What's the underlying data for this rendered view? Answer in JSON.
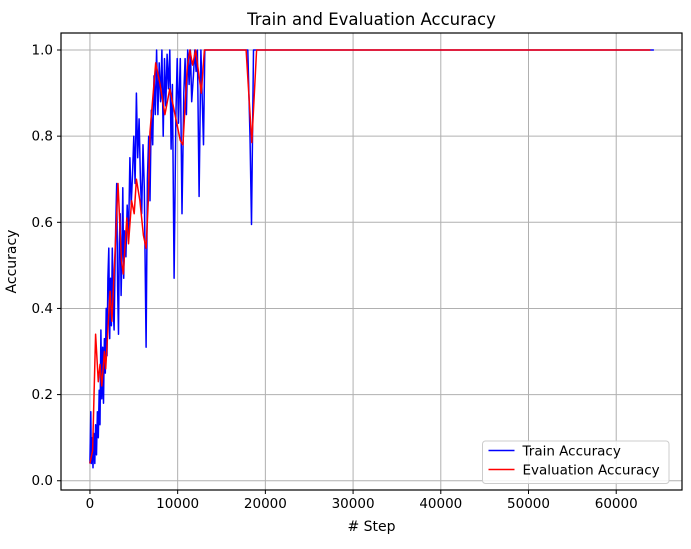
{
  "figure": {
    "background": "#ffffff"
  },
  "chart_data": {
    "type": "line",
    "title": "Train and Evaluation Accuracy",
    "xlabel": "# Step",
    "ylabel": "Accuracy",
    "xlim": [
      -3300,
      67500
    ],
    "ylim": [
      -0.0215,
      1.0395
    ],
    "xticks": [
      0,
      10000,
      20000,
      30000,
      40000,
      50000,
      60000
    ],
    "xtick_labels": [
      "0",
      "10000",
      "20000",
      "30000",
      "40000",
      "50000",
      "60000"
    ],
    "yticks": [
      0.0,
      0.2,
      0.4,
      0.6,
      0.8,
      1.0
    ],
    "ytick_labels": [
      "0.0",
      "0.2",
      "0.4",
      "0.6",
      "0.8",
      "1.0"
    ],
    "grid": true,
    "grid_color": "#b0b0b0",
    "spine_color": "#000000",
    "legend": {
      "position": "lower right",
      "background": "#ffffff",
      "border_color": "#cccccc"
    },
    "series": [
      {
        "name": "Train Accuracy",
        "color": "#0000ff",
        "points": [
          [
            0,
            0.04
          ],
          [
            100,
            0.16
          ],
          [
            150,
            0.04
          ],
          [
            250,
            0.1
          ],
          [
            350,
            0.03
          ],
          [
            450,
            0.11
          ],
          [
            550,
            0.04
          ],
          [
            650,
            0.13
          ],
          [
            750,
            0.06
          ],
          [
            850,
            0.16
          ],
          [
            950,
            0.1
          ],
          [
            1050,
            0.21
          ],
          [
            1150,
            0.13
          ],
          [
            1250,
            0.35
          ],
          [
            1350,
            0.19
          ],
          [
            1450,
            0.31
          ],
          [
            1550,
            0.18
          ],
          [
            1650,
            0.33
          ],
          [
            1750,
            0.25
          ],
          [
            1850,
            0.4
          ],
          [
            1950,
            0.29
          ],
          [
            2050,
            0.47
          ],
          [
            2150,
            0.54
          ],
          [
            2250,
            0.33
          ],
          [
            2350,
            0.47
          ],
          [
            2450,
            0.36
          ],
          [
            2550,
            0.54
          ],
          [
            2650,
            0.4
          ],
          [
            2750,
            0.35
          ],
          [
            2850,
            0.48
          ],
          [
            2950,
            0.6
          ],
          [
            3050,
            0.69
          ],
          [
            3150,
            0.45
          ],
          [
            3250,
            0.34
          ],
          [
            3350,
            0.55
          ],
          [
            3450,
            0.62
          ],
          [
            3550,
            0.43
          ],
          [
            3650,
            0.53
          ],
          [
            3750,
            0.68
          ],
          [
            3850,
            0.47
          ],
          [
            3950,
            0.58
          ],
          [
            4100,
            0.52
          ],
          [
            4250,
            0.64
          ],
          [
            4400,
            0.56
          ],
          [
            4550,
            0.75
          ],
          [
            4700,
            0.64
          ],
          [
            4850,
            0.71
          ],
          [
            5000,
            0.8
          ],
          [
            5150,
            0.69
          ],
          [
            5300,
            0.9
          ],
          [
            5450,
            0.75
          ],
          [
            5600,
            0.84
          ],
          [
            5750,
            0.7
          ],
          [
            5900,
            0.62
          ],
          [
            6050,
            0.78
          ],
          [
            6200,
            0.68
          ],
          [
            6400,
            0.31
          ],
          [
            6550,
            0.7
          ],
          [
            6700,
            0.8
          ],
          [
            6850,
            0.65
          ],
          [
            7000,
            0.86
          ],
          [
            7150,
            0.78
          ],
          [
            7300,
            0.94
          ],
          [
            7450,
            0.85
          ],
          [
            7600,
            1.0
          ],
          [
            7750,
            0.85
          ],
          [
            7900,
            0.97
          ],
          [
            8050,
            0.88
          ],
          [
            8200,
            1.0
          ],
          [
            8350,
            0.8
          ],
          [
            8500,
            0.98
          ],
          [
            8650,
            0.87
          ],
          [
            8800,
            0.99
          ],
          [
            8950,
            0.91
          ],
          [
            9100,
            1.0
          ],
          [
            9250,
            0.77
          ],
          [
            9400,
            0.92
          ],
          [
            9600,
            0.47
          ],
          [
            9800,
            0.85
          ],
          [
            9950,
            0.98
          ],
          [
            10100,
            0.83
          ],
          [
            10300,
            0.98
          ],
          [
            10500,
            0.62
          ],
          [
            10700,
            0.9
          ],
          [
            10850,
            0.98
          ],
          [
            11000,
            0.85
          ],
          [
            11150,
            1.0
          ],
          [
            11300,
            0.92
          ],
          [
            11450,
            1.0
          ],
          [
            11600,
            0.88
          ],
          [
            11800,
            0.94
          ],
          [
            11950,
            1.0
          ],
          [
            12100,
            0.95
          ],
          [
            12250,
            1.0
          ],
          [
            12450,
            0.66
          ],
          [
            12650,
            1.0
          ],
          [
            12950,
            0.78
          ],
          [
            13100,
            1.0
          ],
          [
            14000,
            1.0
          ],
          [
            16000,
            1.0
          ],
          [
            18000,
            1.0
          ],
          [
            18250,
            0.8
          ],
          [
            18420,
            0.595
          ],
          [
            18650,
            1.0
          ],
          [
            20000,
            1.0
          ],
          [
            30000,
            1.0
          ],
          [
            40000,
            1.0
          ],
          [
            50000,
            1.0
          ],
          [
            60000,
            1.0
          ],
          [
            64300,
            1.0
          ]
        ]
      },
      {
        "name": "Evaluation Accuracy",
        "color": "#ff0000",
        "points": [
          [
            0,
            0.04
          ],
          [
            300,
            0.07
          ],
          [
            650,
            0.34
          ],
          [
            950,
            0.23
          ],
          [
            1150,
            0.27
          ],
          [
            1350,
            0.22
          ],
          [
            1650,
            0.3
          ],
          [
            1800,
            0.26
          ],
          [
            2300,
            0.44
          ],
          [
            2500,
            0.37
          ],
          [
            2900,
            0.55
          ],
          [
            3200,
            0.69
          ],
          [
            3600,
            0.51
          ],
          [
            3800,
            0.48
          ],
          [
            4200,
            0.61
          ],
          [
            4400,
            0.55
          ],
          [
            4750,
            0.65
          ],
          [
            5050,
            0.62
          ],
          [
            5300,
            0.7
          ],
          [
            5700,
            0.65
          ],
          [
            6100,
            0.57
          ],
          [
            6400,
            0.54
          ],
          [
            6650,
            0.65
          ],
          [
            6850,
            0.81
          ],
          [
            7500,
            0.97
          ],
          [
            8000,
            0.92
          ],
          [
            8550,
            0.85
          ],
          [
            9100,
            0.91
          ],
          [
            9700,
            0.85
          ],
          [
            10300,
            0.79
          ],
          [
            10600,
            0.78
          ],
          [
            11100,
            0.96
          ],
          [
            11400,
            1.0
          ],
          [
            11700,
            0.965
          ],
          [
            12050,
            1.0
          ],
          [
            12700,
            0.9
          ],
          [
            13050,
            1.0
          ],
          [
            14000,
            1.0
          ],
          [
            17800,
            1.0
          ],
          [
            18450,
            0.785
          ],
          [
            19000,
            1.0
          ],
          [
            30000,
            1.0
          ],
          [
            45000,
            1.0
          ],
          [
            63900,
            1.0
          ]
        ]
      }
    ]
  }
}
